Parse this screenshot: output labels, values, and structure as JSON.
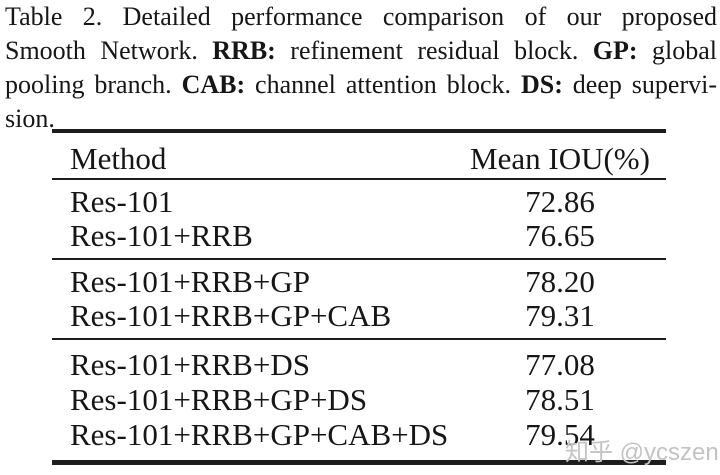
{
  "page": {
    "background": "#ffffff",
    "text_color": "#161616",
    "rule_color": "#1d1d1d"
  },
  "caption": {
    "full_text": "Table 2. Detailed performance comparison of our proposed Smooth Network. RRB: refinement residual block. GP: global pooling branch. CAB: channel attention block. DS: deep supervision.",
    "line1": {
      "t1": "Table 2. Detailed performance comparison of our proposed"
    },
    "line2": {
      "t1": "Smooth Network. ",
      "b1": "RRB:",
      "t2": " refinement residual block. ",
      "b2": "GP:",
      "t3": " global"
    },
    "line3": {
      "t1": "pooling branch. ",
      "b1": "CAB:",
      "t2": " channel attention block. ",
      "b2": "DS:",
      "t3": " deep supervi-"
    },
    "line4": {
      "t1": "sion."
    }
  },
  "table": {
    "headers": {
      "method": "Method",
      "mean_iou": "Mean IOU(%)"
    },
    "sections": [
      {
        "rows": [
          {
            "method": "Res-101",
            "mean_iou": "72.86"
          },
          {
            "method": "Res-101+RRB",
            "mean_iou": "76.65"
          }
        ]
      },
      {
        "rows": [
          {
            "method": "Res-101+RRB+GP",
            "mean_iou": "78.20"
          },
          {
            "method": "Res-101+RRB+GP+CAB",
            "mean_iou": "79.31"
          }
        ]
      },
      {
        "rows": [
          {
            "method": "Res-101+RRB+DS",
            "mean_iou": "77.08"
          },
          {
            "method": "Res-101+RRB+GP+DS",
            "mean_iou": "78.51"
          },
          {
            "method": "Res-101+RRB+GP+CAB+DS",
            "mean_iou": "79.54"
          }
        ]
      }
    ]
  },
  "watermark": {
    "text": "知乎 @ycszen",
    "color": "#c3c3c3"
  }
}
